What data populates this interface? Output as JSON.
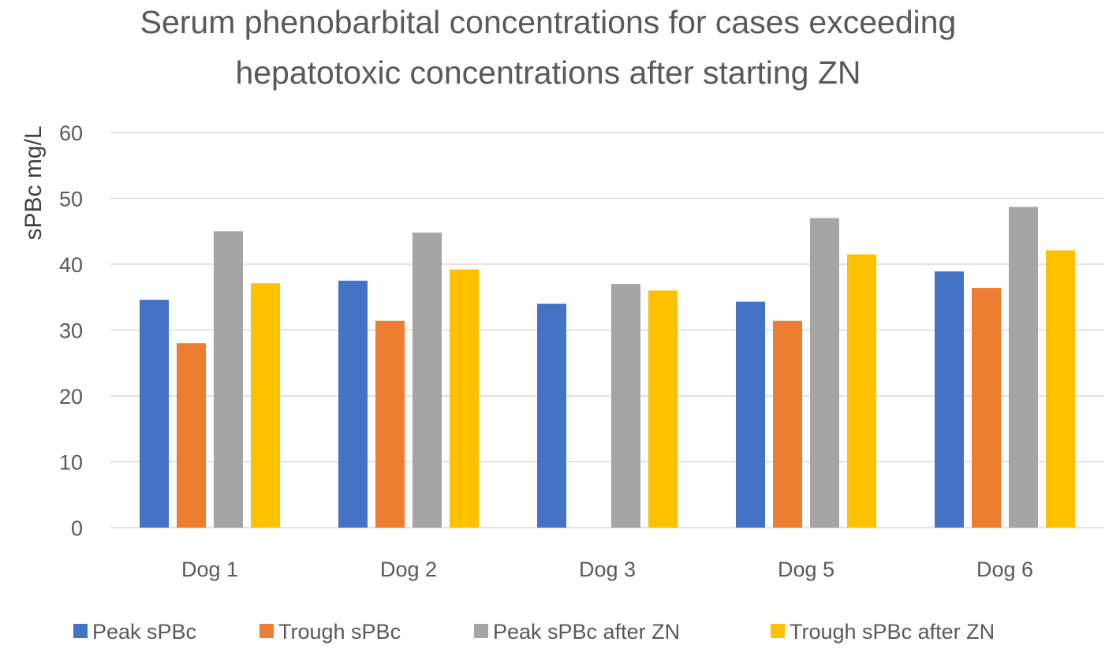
{
  "chart_data": {
    "type": "bar",
    "title_lines": [
      "Serum phenobarbital concentrations for cases exceeding",
      "hepatotoxic concentrations after starting ZN"
    ],
    "xlabel": "",
    "ylabel": "sPBc mg/L",
    "ylim": [
      0,
      60
    ],
    "yticks": [
      0,
      10,
      20,
      30,
      40,
      50,
      60
    ],
    "grid": true,
    "legend_position": "bottom",
    "categories": [
      "Dog 1",
      "Dog 2",
      "Dog 3",
      "Dog 5",
      "Dog 6"
    ],
    "series": [
      {
        "name": "Peak sPBc",
        "color": "#4472C4",
        "values": [
          34.6,
          37.5,
          34.0,
          34.3,
          38.9
        ]
      },
      {
        "name": "Trough sPBc",
        "color": "#ED7D31",
        "values": [
          28.0,
          31.4,
          null,
          31.4,
          36.4
        ]
      },
      {
        "name": "Peak sPBc after ZN",
        "color": "#A5A5A5",
        "values": [
          45.0,
          44.8,
          37.0,
          47.0,
          48.7
        ]
      },
      {
        "name": "Trough sPBc after ZN",
        "color": "#FFC000",
        "values": [
          37.1,
          39.2,
          36.0,
          41.5,
          42.1
        ]
      }
    ]
  }
}
